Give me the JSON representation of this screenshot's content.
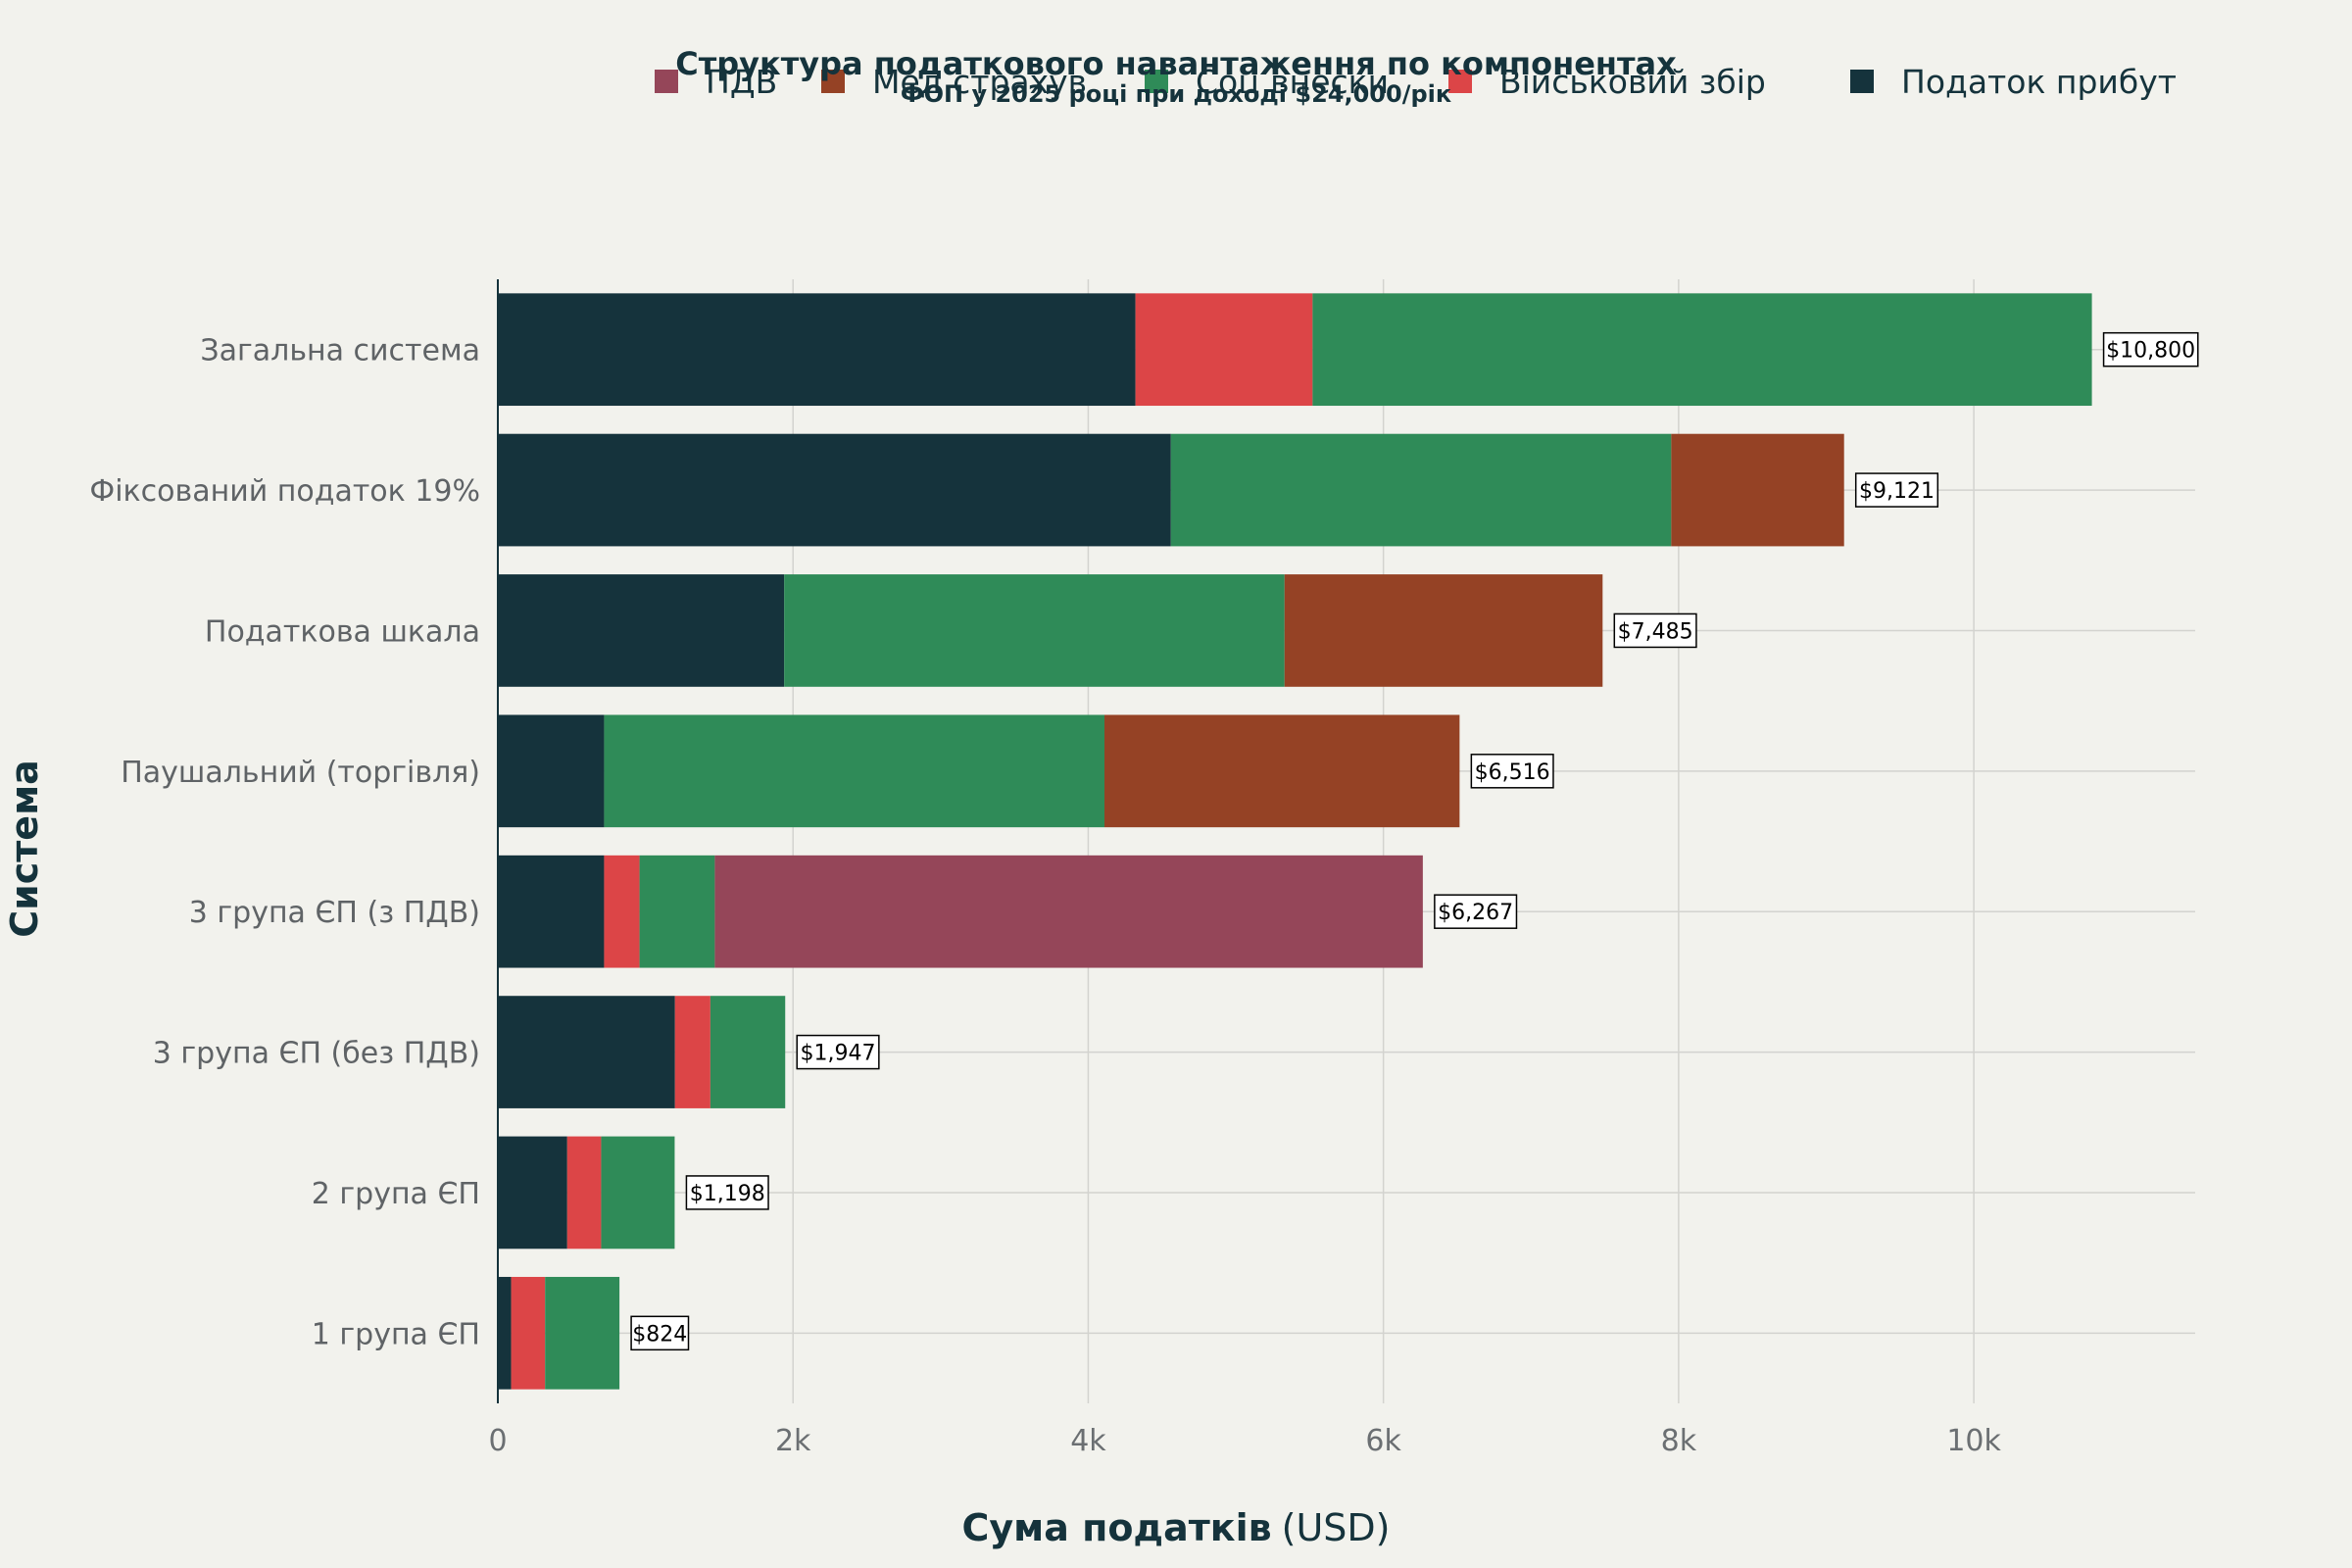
{
  "chart_data": {
    "type": "bar",
    "orientation": "horizontal",
    "stacked": true,
    "title": "Структура податкового навантаження по компонентах",
    "subtitle": "ФОП у 2025 році при доході $24,000/рік",
    "xlabel_bold": "Сума податків",
    "xlabel_unit": "(USD)",
    "ylabel": "Система",
    "xlim": [
      0,
      11500
    ],
    "xticks": [
      0,
      2000,
      4000,
      6000,
      8000,
      10000
    ],
    "xtick_labels": [
      "0",
      "2k",
      "4k",
      "6k",
      "8k",
      "10k"
    ],
    "grid": true,
    "legend_position": "top",
    "categories": [
      "Загальна система",
      "Фіксований податок 19%",
      "Податкова шкала",
      "Паушальний (торгівля)",
      "3 група ЄП (з ПДВ)",
      "3 група ЄП (без ПДВ)",
      "2 група ЄП",
      "1 група ЄП"
    ],
    "series": [
      {
        "name": "Податок прибут",
        "color": "#15333c",
        "values": [
          4320,
          4560,
          1940,
          720,
          720,
          1200,
          470,
          90
        ]
      },
      {
        "name": "Військовий збір",
        "color": "#dc4547",
        "values": [
          1200,
          0,
          0,
          0,
          240,
          240,
          230,
          230
        ]
      },
      {
        "name": "Соц внески",
        "color": "#2f8b58",
        "values": [
          5280,
          3390,
          3390,
          3390,
          510,
          507,
          498,
          504
        ]
      },
      {
        "name": "Мед страхув",
        "color": "#954225",
        "values": [
          0,
          1171,
          2155,
          2406,
          0,
          0,
          0,
          0
        ]
      },
      {
        "name": "ПДВ",
        "color": "#954659",
        "values": [
          0,
          0,
          0,
          0,
          4797,
          0,
          0,
          0
        ]
      }
    ],
    "legend_order": [
      "ПДВ",
      "Мед страхув",
      "Соц внески",
      "Військовий збір",
      "Податок прибут"
    ],
    "totals": [
      10800,
      9121,
      7485,
      6516,
      6267,
      1947,
      1198,
      824
    ],
    "total_labels": [
      "$10,800",
      "$9,121",
      "$7,485",
      "$6,516",
      "$6,267",
      "$1,947",
      "$1,198",
      "$824"
    ]
  }
}
